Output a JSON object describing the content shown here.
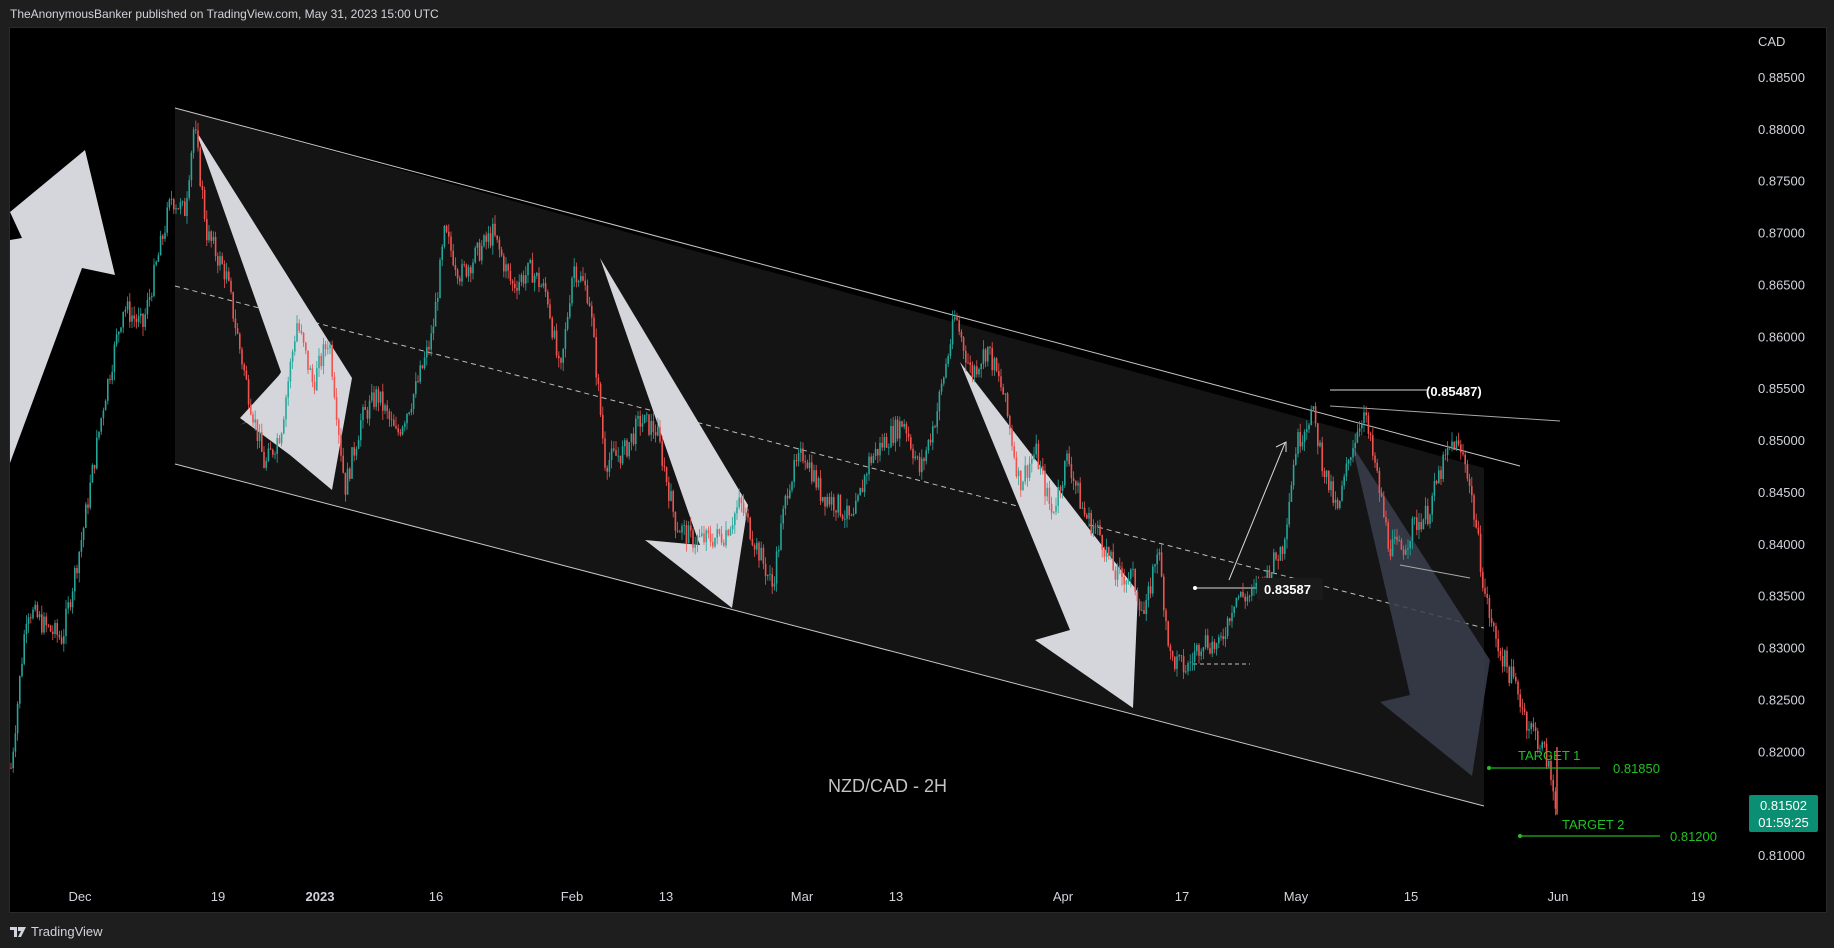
{
  "header": {
    "attribution": "TheAnonymousBanker published on TradingView.com, May 31, 2023 15:00 UTC"
  },
  "footer": {
    "brand": "TradingView"
  },
  "chart_data": {
    "type": "candlestick",
    "title": "NZD/CAD - 2H",
    "currency": "CAD",
    "ylim": [
      0.8075,
      0.89
    ],
    "y_ticks": [
      "0.88500",
      "0.88000",
      "0.87500",
      "0.87000",
      "0.86500",
      "0.86000",
      "0.85500",
      "0.85000",
      "0.84500",
      "0.84000",
      "0.83500",
      "0.83000",
      "0.82500",
      "0.82000",
      "0.81500",
      "0.81000"
    ],
    "x_ticks": [
      "Dec",
      "19",
      "2023",
      "16",
      "Feb",
      "13",
      "Mar",
      "13",
      "Apr",
      "17",
      "May",
      "15",
      "Jun",
      "19"
    ],
    "last_price": {
      "value": "0.81502",
      "countdown": "01:59:25"
    },
    "annotations": {
      "level_high": "(0.85487)",
      "level_mid": "0.83587",
      "target1_label": "TARGET 1",
      "target1_value": "0.81850",
      "target2_label": "TARGET 2",
      "target2_value": "0.81200"
    },
    "price_path": [
      [
        0.0,
        0.8185
      ],
      [
        0.01,
        0.834
      ],
      [
        0.022,
        0.832
      ],
      [
        0.032,
        0.831
      ],
      [
        0.045,
        0.8415
      ],
      [
        0.058,
        0.854
      ],
      [
        0.07,
        0.863
      ],
      [
        0.082,
        0.861
      ],
      [
        0.092,
        0.868
      ],
      [
        0.1,
        0.8735
      ],
      [
        0.108,
        0.872
      ],
      [
        0.114,
        0.8805
      ],
      [
        0.122,
        0.87
      ],
      [
        0.134,
        0.866
      ],
      [
        0.146,
        0.856
      ],
      [
        0.158,
        0.8475
      ],
      [
        0.168,
        0.851
      ],
      [
        0.178,
        0.8615
      ],
      [
        0.188,
        0.8555
      ],
      [
        0.198,
        0.86
      ],
      [
        0.208,
        0.8455
      ],
      [
        0.218,
        0.852
      ],
      [
        0.228,
        0.8545
      ],
      [
        0.24,
        0.8505
      ],
      [
        0.252,
        0.855
      ],
      [
        0.262,
        0.86
      ],
      [
        0.27,
        0.87
      ],
      [
        0.28,
        0.866
      ],
      [
        0.29,
        0.868
      ],
      [
        0.3,
        0.87
      ],
      [
        0.312,
        0.865
      ],
      [
        0.324,
        0.8665
      ],
      [
        0.334,
        0.864
      ],
      [
        0.342,
        0.856
      ],
      [
        0.35,
        0.867
      ],
      [
        0.36,
        0.864
      ],
      [
        0.37,
        0.848
      ],
      [
        0.382,
        0.849
      ],
      [
        0.392,
        0.852
      ],
      [
        0.402,
        0.851
      ],
      [
        0.414,
        0.842
      ],
      [
        0.424,
        0.8405
      ],
      [
        0.434,
        0.8405
      ],
      [
        0.444,
        0.841
      ],
      [
        0.454,
        0.844
      ],
      [
        0.464,
        0.84
      ],
      [
        0.474,
        0.836
      ],
      [
        0.484,
        0.846
      ],
      [
        0.494,
        0.849
      ],
      [
        0.504,
        0.845
      ],
      [
        0.514,
        0.844
      ],
      [
        0.524,
        0.842
      ],
      [
        0.534,
        0.848
      ],
      [
        0.544,
        0.85
      ],
      [
        0.556,
        0.852
      ],
      [
        0.566,
        0.847
      ],
      [
        0.576,
        0.8525
      ],
      [
        0.588,
        0.862
      ],
      [
        0.598,
        0.8565
      ],
      [
        0.608,
        0.859
      ],
      [
        0.618,
        0.8545
      ],
      [
        0.628,
        0.846
      ],
      [
        0.638,
        0.849
      ],
      [
        0.648,
        0.843
      ],
      [
        0.658,
        0.8485
      ],
      [
        0.668,
        0.843
      ],
      [
        0.678,
        0.841
      ],
      [
        0.688,
        0.837
      ],
      [
        0.698,
        0.837
      ],
      [
        0.706,
        0.833
      ],
      [
        0.714,
        0.84
      ],
      [
        0.722,
        0.829
      ],
      [
        0.732,
        0.828
      ],
      [
        0.742,
        0.831
      ],
      [
        0.752,
        0.83
      ],
      [
        0.762,
        0.835
      ],
      [
        0.772,
        0.835
      ],
      [
        0.782,
        0.837
      ],
      [
        0.792,
        0.84
      ],
      [
        0.8,
        0.8495
      ],
      [
        0.81,
        0.853
      ],
      [
        0.818,
        0.847
      ],
      [
        0.826,
        0.843
      ],
      [
        0.834,
        0.849
      ],
      [
        0.842,
        0.853
      ],
      [
        0.85,
        0.847
      ],
      [
        0.858,
        0.84
      ],
      [
        0.866,
        0.8395
      ],
      [
        0.874,
        0.842
      ],
      [
        0.882,
        0.843
      ],
      [
        0.89,
        0.847
      ],
      [
        0.898,
        0.85
      ],
      [
        0.906,
        0.848
      ],
      [
        0.912,
        0.842
      ],
      [
        0.918,
        0.835
      ],
      [
        0.924,
        0.831
      ],
      [
        0.932,
        0.828
      ],
      [
        0.938,
        0.826
      ],
      [
        0.944,
        0.823
      ],
      [
        0.95,
        0.8215
      ],
      [
        0.956,
        0.8195
      ],
      [
        0.962,
        0.815
      ]
    ]
  }
}
